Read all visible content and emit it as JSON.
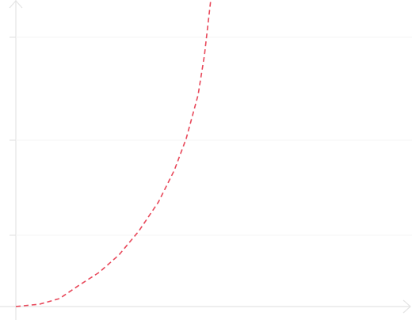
{
  "chart_data": {
    "type": "line",
    "x": [
      0,
      30,
      55,
      80,
      105,
      130,
      155,
      180,
      200,
      215,
      230,
      238,
      246
    ],
    "values": [
      0,
      3,
      10,
      27,
      43,
      65,
      95,
      132,
      172,
      212,
      267,
      317,
      387
    ],
    "color": "#e8485a",
    "dashed": true,
    "xlim": [
      0,
      500
    ],
    "ylim": [
      0,
      387
    ],
    "yticks": [
      90,
      210,
      340
    ],
    "grid": true
  }
}
